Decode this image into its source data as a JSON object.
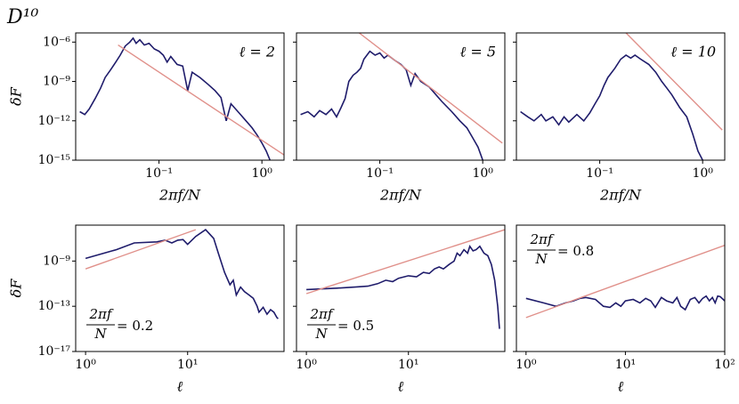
{
  "title": "D¹⁰",
  "chart_data": [
    {
      "type": "line",
      "xlog": true,
      "ylog": true,
      "xlim": [
        0.0155,
        1.64
      ],
      "ylim": [
        1e-15,
        5e-06
      ],
      "xticks": [
        {
          "value": 0.1,
          "label": "10⁻¹"
        },
        {
          "value": 1,
          "label": "10⁰"
        }
      ],
      "yticks": [
        {
          "value": 1e-15,
          "label": "10⁻¹⁵"
        },
        {
          "value": 1e-12,
          "label": "10⁻¹²"
        },
        {
          "value": 1e-09,
          "label": "10⁻⁹"
        },
        {
          "value": 1e-06,
          "label": "10⁻⁶"
        }
      ],
      "ytick_labels": true,
      "x_label": "2πf/N",
      "y_label": "δF",
      "annotation": "ℓ = 2",
      "annotation_corner": "top-right",
      "series": [
        {
          "color": "#1f1c6b",
          "x": [
            0.017,
            0.019,
            0.021,
            0.024,
            0.027,
            0.03,
            0.034,
            0.038,
            0.042,
            0.047,
            0.052,
            0.056,
            0.06,
            0.065,
            0.072,
            0.08,
            0.09,
            0.1,
            0.11,
            0.12,
            0.13,
            0.15,
            0.17,
            0.19,
            0.21,
            0.25,
            0.3,
            0.35,
            0.4,
            0.45,
            0.5,
            0.6,
            0.7,
            0.8,
            0.9,
            1.0,
            1.1,
            1.2
          ],
          "values": [
            5e-12,
            3e-12,
            8e-12,
            5e-11,
            3e-10,
            2e-09,
            8e-09,
            3e-08,
            1e-07,
            5e-07,
            1e-06,
            2e-06,
            8e-07,
            1.5e-06,
            6e-07,
            8e-07,
            3e-07,
            2e-07,
            1e-07,
            3e-08,
            8e-08,
            2e-08,
            1.5e-08,
            2e-10,
            5e-09,
            2e-09,
            6e-10,
            2e-10,
            6e-11,
            1e-12,
            2e-11,
            4e-12,
            1e-12,
            3e-13,
            8e-14,
            2e-14,
            5e-15,
            1e-15
          ]
        },
        {
          "color": "#e0908a",
          "x": [
            0.04,
            1.64
          ],
          "values": [
            6e-07,
            2.5e-15
          ]
        }
      ]
    },
    {
      "type": "line",
      "xlog": true,
      "ylog": true,
      "xlim": [
        0.0155,
        1.64
      ],
      "ylim": [
        1e-15,
        5e-06
      ],
      "xticks": [
        {
          "value": 0.1,
          "label": "10⁻¹"
        },
        {
          "value": 1,
          "label": "10⁰"
        }
      ],
      "yticks": [
        {
          "value": 1e-15,
          "label": "10⁻¹⁵"
        },
        {
          "value": 1e-12,
          "label": "10⁻¹²"
        },
        {
          "value": 1e-09,
          "label": "10⁻⁹"
        },
        {
          "value": 1e-06,
          "label": "10⁻⁶"
        }
      ],
      "ytick_labels": false,
      "x_label": "2πf/N",
      "annotation": "ℓ = 5",
      "annotation_corner": "top-right",
      "series": [
        {
          "color": "#1f1c6b",
          "x": [
            0.017,
            0.02,
            0.023,
            0.026,
            0.03,
            0.034,
            0.038,
            0.042,
            0.046,
            0.05,
            0.055,
            0.06,
            0.065,
            0.07,
            0.075,
            0.08,
            0.09,
            0.1,
            0.11,
            0.12,
            0.14,
            0.16,
            0.18,
            0.2,
            0.22,
            0.25,
            0.3,
            0.35,
            0.4,
            0.5,
            0.6,
            0.7,
            0.8,
            0.9,
            1.0
          ],
          "values": [
            3e-12,
            5e-12,
            2e-12,
            6e-12,
            3e-12,
            8e-12,
            2e-12,
            1e-11,
            5e-11,
            1e-09,
            3e-09,
            5e-09,
            1e-08,
            5e-08,
            1e-07,
            2e-07,
            1e-07,
            1.5e-07,
            6e-08,
            1e-07,
            4e-08,
            2e-08,
            8e-09,
            5e-10,
            4e-09,
            1e-09,
            4e-10,
            1e-10,
            3e-11,
            5e-12,
            1e-12,
            3e-13,
            5e-14,
            1e-14,
            1e-15
          ]
        },
        {
          "color": "#e0908a",
          "x": [
            0.063,
            1.55
          ],
          "values": [
            5e-06,
            2e-14
          ]
        }
      ]
    },
    {
      "type": "line",
      "xlog": true,
      "ylog": true,
      "xlim": [
        0.0155,
        1.64
      ],
      "ylim": [
        1e-15,
        5e-06
      ],
      "xticks": [
        {
          "value": 0.1,
          "label": "10⁻¹"
        },
        {
          "value": 1,
          "label": "10⁰"
        }
      ],
      "yticks": [
        {
          "value": 1e-15,
          "label": "10⁻¹⁵"
        },
        {
          "value": 1e-12,
          "label": "10⁻¹²"
        },
        {
          "value": 1e-09,
          "label": "10⁻⁹"
        },
        {
          "value": 1e-06,
          "label": "10⁻⁶"
        }
      ],
      "ytick_labels": false,
      "x_label": "2πf/N",
      "annotation": "ℓ = 10",
      "annotation_corner": "top-right",
      "series": [
        {
          "color": "#1f1c6b",
          "x": [
            0.017,
            0.02,
            0.023,
            0.027,
            0.03,
            0.035,
            0.04,
            0.045,
            0.05,
            0.06,
            0.07,
            0.08,
            0.09,
            0.1,
            0.11,
            0.12,
            0.14,
            0.16,
            0.18,
            0.2,
            0.22,
            0.25,
            0.3,
            0.35,
            0.4,
            0.45,
            0.5,
            0.6,
            0.7,
            0.8,
            0.9,
            1.0
          ],
          "values": [
            5e-12,
            2e-12,
            1e-12,
            3e-12,
            1e-12,
            2e-12,
            5e-13,
            2e-12,
            8e-13,
            3e-12,
            1e-12,
            4e-12,
            2e-11,
            8e-11,
            5e-10,
            2e-09,
            1e-08,
            5e-08,
            1e-07,
            6e-08,
            1e-07,
            5e-08,
            2e-08,
            5e-09,
            1e-09,
            3e-10,
            1e-10,
            1e-11,
            2e-12,
            1e-13,
            5e-15,
            1e-15
          ]
        },
        {
          "color": "#e0908a",
          "x": [
            0.18,
            1.55
          ],
          "values": [
            5e-06,
            2e-13
          ]
        }
      ]
    },
    {
      "type": "line",
      "xlog": true,
      "ylog": true,
      "xlim": [
        0.8,
        88
      ],
      "ylim": [
        1e-17,
        1.5e-06
      ],
      "xticks": [
        {
          "value": 1,
          "label": "10⁰"
        },
        {
          "value": 10,
          "label": "10¹"
        }
      ],
      "yticks": [
        {
          "value": 1e-17,
          "label": "10⁻¹⁷"
        },
        {
          "value": 1e-13,
          "label": "10⁻¹³"
        },
        {
          "value": 1e-09,
          "label": "10⁻⁹"
        }
      ],
      "ytick_labels": true,
      "x_label": "ℓ",
      "y_label": "δF",
      "annotation": {
        "numerator": "2πf",
        "denominator": "N",
        "rest": "= 0.2"
      },
      "annotation_corner": "bottom-left",
      "series": [
        {
          "color": "#1f1c6b",
          "x": [
            1,
            2,
            3,
            5,
            6,
            7,
            8,
            9,
            10,
            12,
            15,
            18,
            20,
            23,
            26,
            28,
            30,
            33,
            36,
            40,
            44,
            48,
            50,
            55,
            60,
            65,
            70,
            75,
            77
          ],
          "values": [
            1.7e-09,
            1e-08,
            4e-08,
            5e-08,
            7e-08,
            4e-08,
            7e-08,
            8e-08,
            3e-08,
            1.5e-07,
            6e-07,
            1e-07,
            5e-09,
            1e-10,
            8e-12,
            2e-11,
            1e-12,
            5e-12,
            2e-12,
            1e-12,
            5e-13,
            1e-13,
            3e-14,
            8e-14,
            2e-14,
            5e-14,
            3e-14,
            1e-14,
            8e-15
          ]
        },
        {
          "color": "#e0908a",
          "x": [
            1,
            12
          ],
          "values": [
            2e-10,
            6e-07
          ]
        }
      ]
    },
    {
      "type": "line",
      "xlog": true,
      "ylog": true,
      "xlim": [
        0.8,
        88
      ],
      "ylim": [
        1e-17,
        1.5e-06
      ],
      "xticks": [
        {
          "value": 1,
          "label": "10⁰"
        },
        {
          "value": 10,
          "label": "10¹"
        }
      ],
      "yticks": [
        {
          "value": 1e-17,
          "label": "10⁻¹⁷"
        },
        {
          "value": 1e-13,
          "label": "10⁻¹³"
        },
        {
          "value": 1e-09,
          "label": "10⁻⁹"
        }
      ],
      "ytick_labels": false,
      "x_label": "ℓ",
      "annotation": {
        "numerator": "2πf",
        "denominator": "N",
        "rest": "= 0.5"
      },
      "annotation_corner": "bottom-left",
      "series": [
        {
          "color": "#1f1c6b",
          "x": [
            1,
            2,
            3,
            4,
            5,
            6,
            7,
            8,
            10,
            12,
            14,
            16,
            18,
            20,
            22,
            25,
            28,
            30,
            32,
            35,
            38,
            40,
            43,
            46,
            50,
            55,
            60,
            65,
            70,
            75,
            78
          ],
          "values": [
            3e-12,
            4e-12,
            5e-12,
            6e-12,
            1e-11,
            2e-11,
            1.5e-11,
            3e-11,
            5e-11,
            4e-11,
            1e-10,
            8e-11,
            2e-10,
            3e-10,
            2e-10,
            5e-10,
            1e-09,
            5e-09,
            3e-09,
            1e-08,
            5e-09,
            2e-08,
            8e-09,
            1e-08,
            2e-08,
            5e-09,
            3e-09,
            5e-10,
            2e-11,
            1e-13,
            1e-15
          ]
        },
        {
          "color": "#e0908a",
          "x": [
            1,
            88
          ],
          "values": [
            1.3e-12,
            6e-07
          ]
        }
      ]
    },
    {
      "type": "line",
      "xlog": true,
      "ylog": true,
      "xlim": [
        0.8,
        100
      ],
      "ylim": [
        1e-17,
        1.5e-06
      ],
      "xticks": [
        {
          "value": 1,
          "label": "10⁰"
        },
        {
          "value": 10,
          "label": "10¹"
        },
        {
          "value": 100,
          "label": "10²"
        }
      ],
      "yticks": [
        {
          "value": 1e-17,
          "label": "10⁻¹⁷"
        },
        {
          "value": 1e-13,
          "label": "10⁻¹³"
        },
        {
          "value": 1e-09,
          "label": "10⁻⁹"
        }
      ],
      "ytick_labels": false,
      "x_label": "ℓ",
      "annotation": {
        "numerator": "2πf",
        "denominator": "N",
        "rest": "= 0.8"
      },
      "annotation_corner": "top-left",
      "series": [
        {
          "color": "#1f1c6b",
          "x": [
            1,
            1.5,
            2,
            2.5,
            3,
            3.5,
            4,
            5,
            6,
            7,
            8,
            9,
            10,
            12,
            14,
            16,
            18,
            20,
            23,
            26,
            30,
            33,
            36,
            40,
            45,
            50,
            55,
            60,
            65,
            70,
            75,
            80,
            85,
            90,
            100
          ],
          "values": [
            5e-13,
            2e-13,
            1e-13,
            2e-13,
            3e-13,
            5e-13,
            6e-13,
            4e-13,
            1e-13,
            8e-14,
            2e-13,
            1e-13,
            3e-13,
            4e-13,
            2e-13,
            5e-13,
            3e-13,
            8e-14,
            6e-13,
            3e-13,
            2e-13,
            6e-13,
            1e-13,
            5e-14,
            4e-13,
            6e-13,
            2e-13,
            5e-13,
            8e-13,
            3e-13,
            6e-13,
            2e-13,
            8e-13,
            7e-13,
            3e-13
          ]
        },
        {
          "color": "#e0908a",
          "x": [
            1,
            100
          ],
          "values": [
            1e-14,
            2.5e-08
          ]
        }
      ]
    }
  ]
}
